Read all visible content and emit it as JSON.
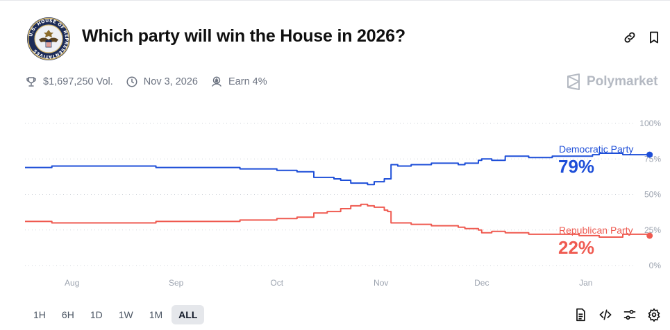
{
  "header": {
    "title": "Which party will win the House in 2026?",
    "seal_text": "U.S. HOUSE OF REPRESENTATIVES"
  },
  "meta": {
    "volume": "$1,697,250 Vol.",
    "date": "Nov 3, 2026",
    "earn": "Earn 4%"
  },
  "brand": {
    "name": "Polymarket"
  },
  "colors": {
    "dem": "#1d4ed8",
    "rep": "#ef5a50",
    "grid": "#d1d5db",
    "axis": "#9ca3af"
  },
  "ranges": {
    "options": [
      "1H",
      "6H",
      "1D",
      "1W",
      "1M",
      "ALL"
    ],
    "selected": "ALL"
  },
  "icons": {
    "header": [
      "link-icon",
      "bookmark-icon"
    ],
    "meta": [
      "trophy-icon",
      "clock-icon",
      "earn-icon"
    ],
    "toolbar": [
      "document-icon",
      "code-icon",
      "sliders-icon",
      "gear-icon"
    ]
  },
  "chart_data": {
    "type": "line",
    "x_domain": [
      "2025-07-18",
      "2026-01-24"
    ],
    "xticks": [
      {
        "label": "Aug",
        "date": "2025-08-01"
      },
      {
        "label": "Sep",
        "date": "2025-09-01"
      },
      {
        "label": "Oct",
        "date": "2025-10-01"
      },
      {
        "label": "Nov",
        "date": "2025-11-01"
      },
      {
        "label": "Dec",
        "date": "2025-12-01"
      },
      {
        "label": "Jan",
        "date": "2026-01-01"
      }
    ],
    "ylim": [
      0,
      100
    ],
    "yticks": [
      0,
      25,
      50,
      75,
      100
    ],
    "ytick_labels": [
      "0%",
      "25%",
      "50%",
      "75%",
      "100%"
    ],
    "grid": true,
    "series": [
      {
        "name": "Democratic Party",
        "current_label": "79%",
        "dates": [
          "2025-07-18",
          "2025-07-25",
          "2025-07-26",
          "2025-08-10",
          "2025-08-25",
          "2025-08-26",
          "2025-09-05",
          "2025-09-20",
          "2025-09-26",
          "2025-10-01",
          "2025-10-02",
          "2025-10-07",
          "2025-10-12",
          "2025-10-14",
          "2025-10-18",
          "2025-10-20",
          "2025-10-23",
          "2025-10-26",
          "2025-10-28",
          "2025-10-30",
          "2025-11-01",
          "2025-11-02",
          "2025-11-03",
          "2025-11-04",
          "2025-11-06",
          "2025-11-10",
          "2025-11-16",
          "2025-11-20",
          "2025-11-24",
          "2025-11-26",
          "2025-11-30",
          "2025-12-01",
          "2025-12-04",
          "2025-12-08",
          "2025-12-15",
          "2025-12-22",
          "2025-12-30",
          "2026-01-03",
          "2026-01-05",
          "2026-01-12",
          "2026-01-20"
        ],
        "values": [
          69,
          69,
          70,
          70,
          70,
          69,
          69,
          68,
          68,
          67,
          67,
          66,
          62,
          62,
          61,
          60,
          58,
          58,
          57,
          59,
          59,
          61,
          61,
          71,
          70,
          71,
          72,
          72,
          71,
          72,
          74,
          75,
          74,
          77,
          76,
          77,
          77,
          78,
          79,
          78,
          78
        ]
      },
      {
        "name": "Republican Party",
        "current_label": "22%",
        "dates": [
          "2025-07-18",
          "2025-07-25",
          "2025-07-26",
          "2025-08-10",
          "2025-08-25",
          "2025-08-26",
          "2025-09-05",
          "2025-09-20",
          "2025-09-26",
          "2025-10-01",
          "2025-10-02",
          "2025-10-07",
          "2025-10-12",
          "2025-10-16",
          "2025-10-20",
          "2025-10-23",
          "2025-10-26",
          "2025-10-28",
          "2025-10-30",
          "2025-11-01",
          "2025-11-02",
          "2025-11-03",
          "2025-11-04",
          "2025-11-06",
          "2025-11-10",
          "2025-11-16",
          "2025-11-20",
          "2025-11-24",
          "2025-11-26",
          "2025-11-30",
          "2025-12-01",
          "2025-12-04",
          "2025-12-08",
          "2025-12-15",
          "2025-12-22",
          "2025-12-30",
          "2026-01-03",
          "2026-01-05",
          "2026-01-12",
          "2026-01-20"
        ],
        "values": [
          31,
          31,
          30,
          30,
          30,
          31,
          31,
          32,
          32,
          33,
          33,
          34,
          37,
          38,
          40,
          42,
          43,
          42,
          41,
          41,
          39,
          38,
          30,
          30,
          29,
          28,
          28,
          27,
          26,
          25,
          23,
          24,
          23,
          22,
          22,
          21,
          21,
          20,
          22,
          21
        ]
      }
    ]
  }
}
